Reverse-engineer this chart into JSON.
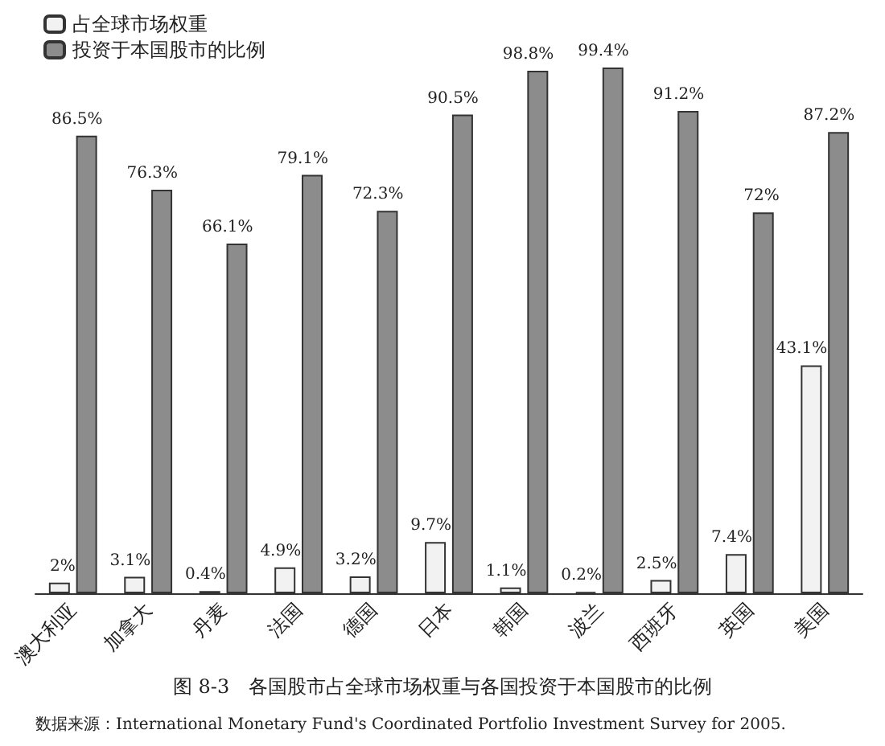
{
  "chart_data": {
    "type": "bar",
    "title": "图 8-3　各国股市占全球市场权重与各国投资于本国股市的比例",
    "annotations": [
      "数据来源：International Monetary Fund's Coordinated Portfolio Investment Survey for 2005."
    ],
    "categories": [
      "澳大利亚",
      "加拿大",
      "丹麦",
      "法国",
      "德国",
      "日本",
      "韩国",
      "波兰",
      "西班牙",
      "英国",
      "美国"
    ],
    "series": [
      {
        "name": "占全球市场权重",
        "color": "#f2f2f2",
        "values": [
          2,
          3.1,
          0.4,
          4.9,
          3.2,
          9.7,
          1.1,
          0.2,
          2.5,
          7.4,
          43.1
        ],
        "value_labels": [
          "2%",
          "3.1%",
          "0.4%",
          "4.9%",
          "3.2%",
          "9.7%",
          "1.1%",
          "0.2%",
          "2.5%",
          "7.4%",
          "43.1%"
        ]
      },
      {
        "name": "投资于本国股市的比例",
        "color": "#8c8c8c",
        "values": [
          86.5,
          76.3,
          66.1,
          79.1,
          72.3,
          90.5,
          98.8,
          99.4,
          91.2,
          72,
          87.2
        ],
        "value_labels": [
          "86.5%",
          "76.3%",
          "66.1%",
          "79.1%",
          "72.3%",
          "90.5%",
          "98.8%",
          "99.4%",
          "91.2%",
          "72%",
          "87.2%"
        ]
      }
    ],
    "legend": "top left"
  }
}
